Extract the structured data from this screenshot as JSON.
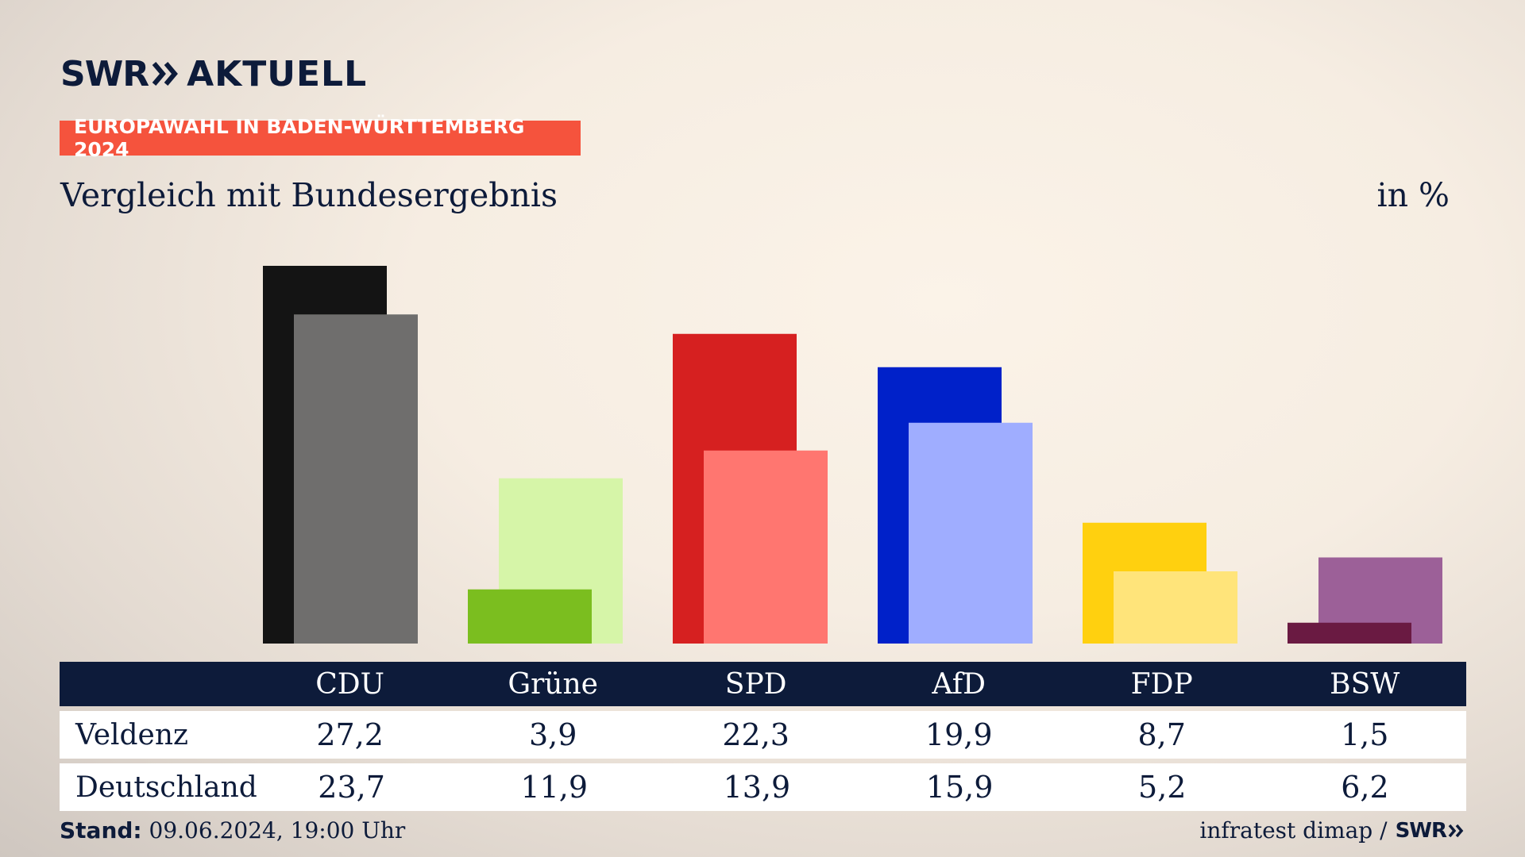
{
  "logo": {
    "brand": "SWR",
    "product": "AKTUELL"
  },
  "banner": "EUROPAWAHL IN BADEN-WÜRTTEMBERG 2024",
  "subtitle": "Vergleich mit Bundesergebnis",
  "unit": "in %",
  "colors": {
    "CDU": [
      "#141414",
      "#6f6e6d"
    ],
    "Grüne": [
      "#7bbe1f",
      "#d6f5a8"
    ],
    "SPD": [
      "#d62020",
      "#ff7670"
    ],
    "AfD": [
      "#0021c9",
      "#9fadff"
    ],
    "FDP": [
      "#ffd00f",
      "#ffe47a"
    ],
    "BSW": [
      "#6a1a42",
      "#9c6098"
    ]
  },
  "chart_data": {
    "type": "bar",
    "categories": [
      "CDU",
      "Grüne",
      "SPD",
      "AfD",
      "FDP",
      "BSW"
    ],
    "series": [
      {
        "name": "Veldenz",
        "values": [
          27.2,
          3.9,
          22.3,
          19.9,
          8.7,
          1.5
        ]
      },
      {
        "name": "Deutschland",
        "values": [
          23.7,
          11.9,
          13.9,
          15.9,
          5.2,
          6.2
        ]
      }
    ],
    "ylim": [
      0,
      27.2
    ],
    "grid": false,
    "legend": "table-below"
  },
  "table": {
    "header": [
      "CDU",
      "Grüne",
      "SPD",
      "AfD",
      "FDP",
      "BSW"
    ],
    "rows": [
      {
        "label": "Veldenz",
        "values": [
          "27,2",
          "3,9",
          "22,3",
          "19,9",
          "8,7",
          "1,5"
        ]
      },
      {
        "label": "Deutschland",
        "values": [
          "23,7",
          "11,9",
          "13,9",
          "15,9",
          "5,2",
          "6,2"
        ]
      }
    ]
  },
  "footer": {
    "stand_label": "Stand:",
    "stand_value": "09.06.2024, 19:00 Uhr",
    "source": "infratest dimap /",
    "source_brand": "SWR"
  }
}
